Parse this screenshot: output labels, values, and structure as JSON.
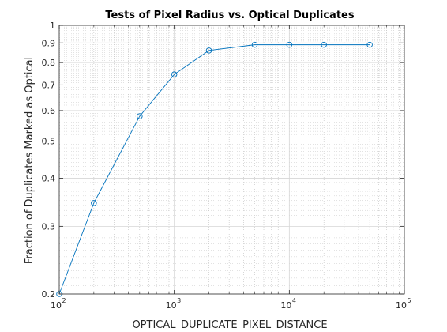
{
  "chart_data": {
    "type": "line",
    "title": "Tests of Pixel Radius vs. Optical Duplicates",
    "xlabel": "OPTICAL_DUPLICATE_PIXEL_DISTANCE",
    "ylabel": "Fraction of Duplicates Marked as Optical",
    "xscale": "log",
    "yscale": "log",
    "xlim": [
      100,
      100000
    ],
    "ylim": [
      0.2,
      1
    ],
    "grid": true,
    "minor_grid": true,
    "legend": "none",
    "x_ticks": [
      {
        "value": 100,
        "base": "10",
        "exp": "2"
      },
      {
        "value": 1000,
        "base": "10",
        "exp": "3"
      },
      {
        "value": 10000,
        "base": "10",
        "exp": "4"
      },
      {
        "value": 100000,
        "base": "10",
        "exp": "5"
      }
    ],
    "y_ticks": [
      {
        "value": 0.2,
        "label": "0.2"
      },
      {
        "value": 0.3,
        "label": "0.3"
      },
      {
        "value": 0.4,
        "label": "0.4"
      },
      {
        "value": 0.5,
        "label": "0.5"
      },
      {
        "value": 0.6,
        "label": "0.6"
      },
      {
        "value": 0.7,
        "label": "0.7"
      },
      {
        "value": 0.8,
        "label": "0.8"
      },
      {
        "value": 0.9,
        "label": "0.9"
      },
      {
        "value": 1,
        "label": "1"
      }
    ],
    "series": [
      {
        "color": "#0072bd",
        "marker": "circle",
        "x": [
          100,
          200,
          500,
          1000,
          2000,
          5000,
          10000,
          20000,
          50000
        ],
        "y": [
          0.2,
          0.345,
          0.58,
          0.745,
          0.86,
          0.89,
          0.89,
          0.89,
          0.89
        ]
      }
    ]
  }
}
